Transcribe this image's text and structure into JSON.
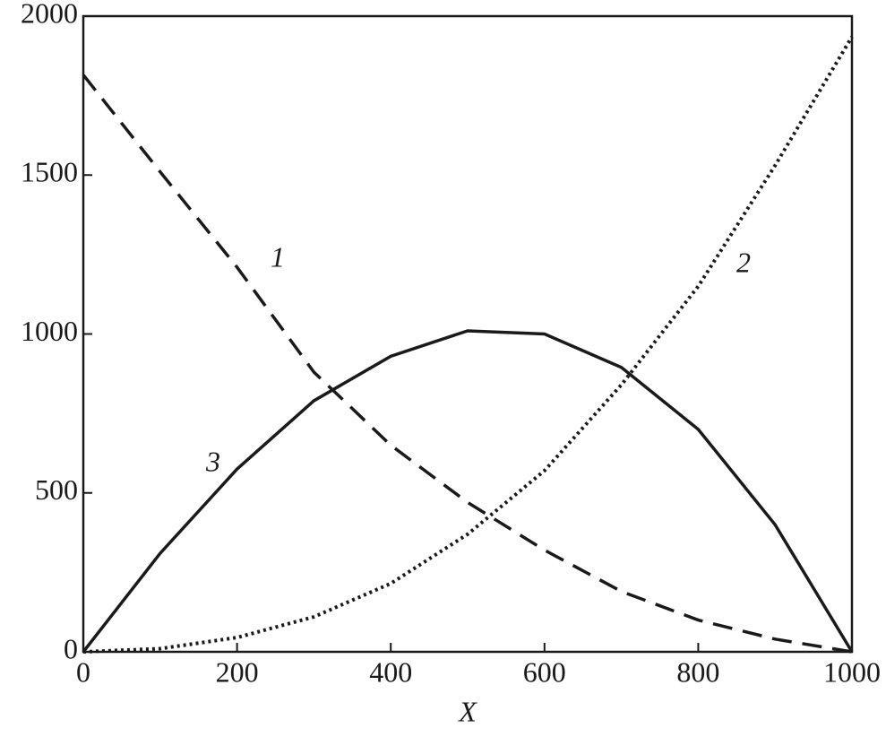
{
  "chart_data": {
    "type": "line",
    "x_label": "X",
    "x": [
      0,
      100,
      200,
      300,
      400,
      500,
      600,
      700,
      800,
      900,
      1000
    ],
    "series": [
      {
        "name": "1",
        "color": "#1a1a1a",
        "dash": "dashed",
        "values": [
          1815,
          1510,
          1210,
          880,
          650,
          470,
          320,
          190,
          100,
          40,
          0
        ]
      },
      {
        "name": "2",
        "color": "#1a1a1a",
        "dash": "dotted",
        "values": [
          0,
          10,
          45,
          110,
          215,
          370,
          570,
          840,
          1150,
          1530,
          1935
        ]
      },
      {
        "name": "3",
        "color": "#1a1a1a",
        "dash": "solid",
        "values": [
          0,
          310,
          575,
          790,
          930,
          1010,
          1000,
          895,
          700,
          400,
          0
        ]
      }
    ],
    "xlim": [
      0,
      1000
    ],
    "xticks": [
      0,
      200,
      400,
      600,
      800,
      1000
    ],
    "ylim": [
      0,
      2000
    ],
    "yticks": [
      0,
      500,
      1000,
      1500,
      2000
    ],
    "grid": false
  }
}
